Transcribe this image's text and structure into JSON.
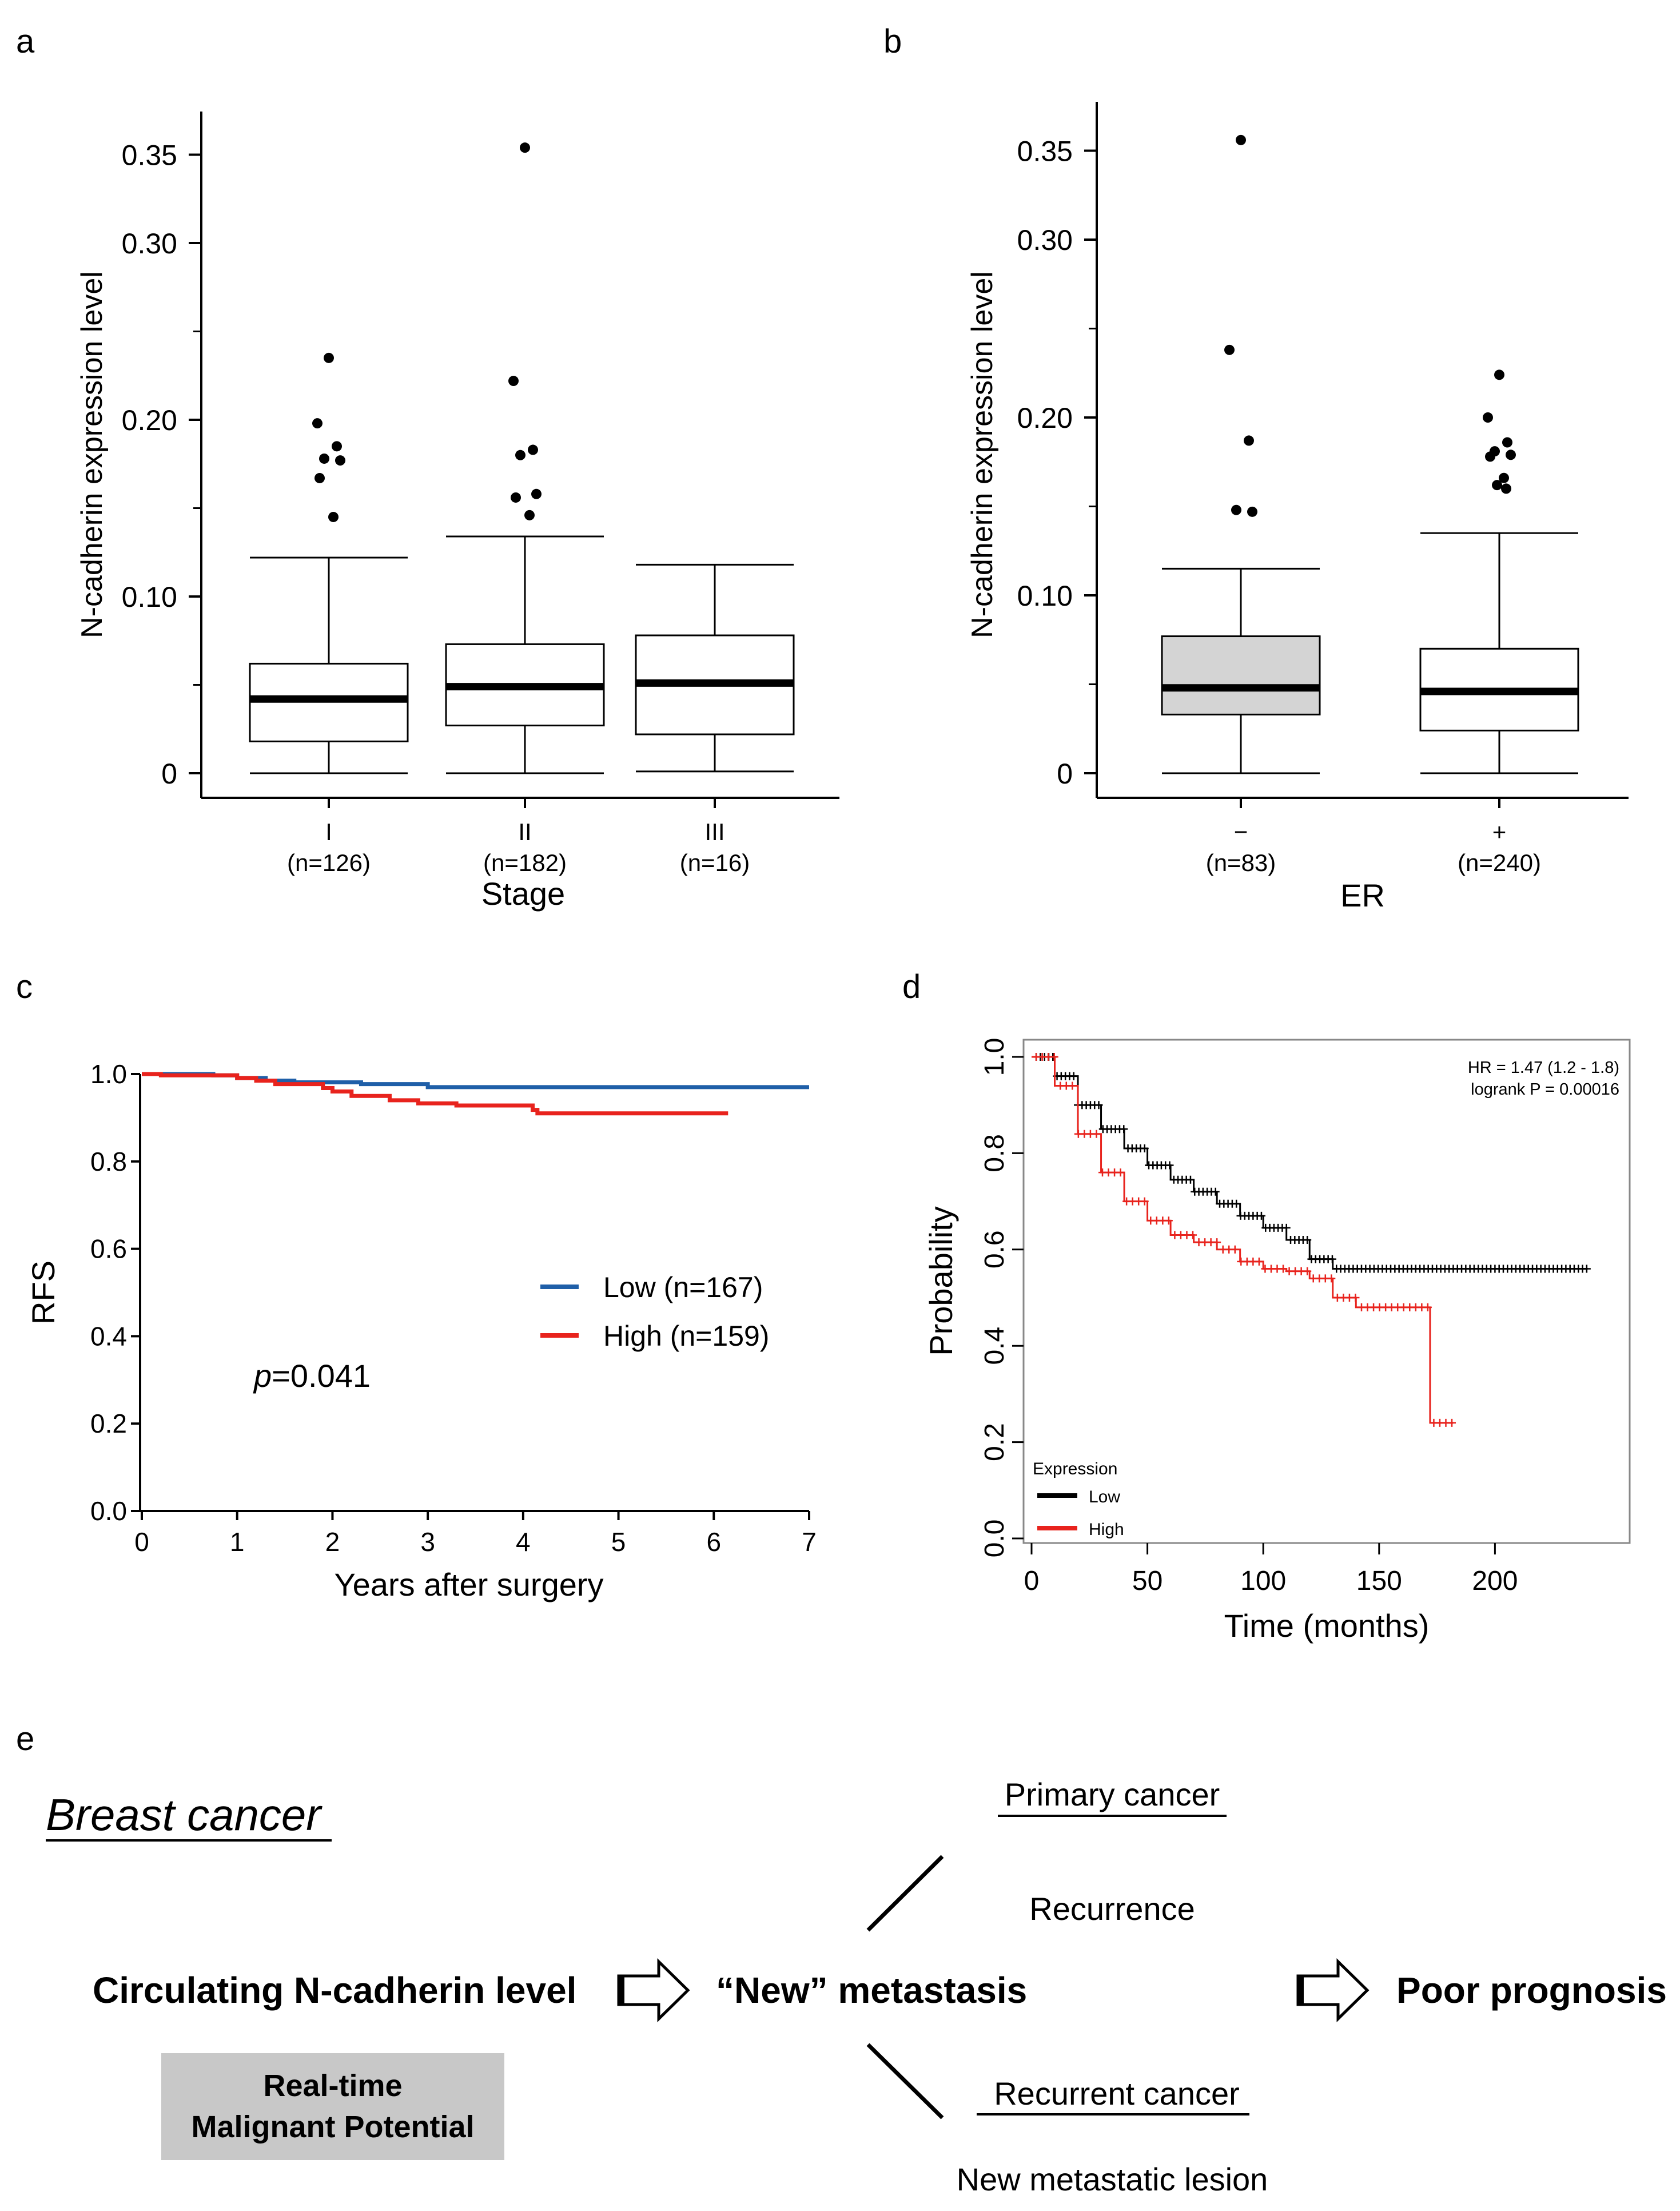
{
  "panel_labels": {
    "a": "a",
    "b": "b",
    "c": "c",
    "d": "d",
    "e": "e"
  },
  "chart_data": [
    {
      "id": "a",
      "type": "box",
      "ylabel": "N-cadherin expression level",
      "xlabel": "Stage",
      "ylim": [
        0,
        0.37
      ],
      "yticks": [
        {
          "v": 0,
          "label": "0"
        },
        {
          "v": 0.1,
          "label": "0.10"
        },
        {
          "v": 0.2,
          "label": "0.20"
        },
        {
          "v": 0.3,
          "label": "0.30"
        },
        {
          "v": 0.35,
          "label": "0.35"
        }
      ],
      "minor_yticks": [
        0.05,
        0.15,
        0.25
      ],
      "groups": [
        {
          "name": "I",
          "n": "(n=126)",
          "min": 0.0,
          "q1": 0.018,
          "median": 0.042,
          "q3": 0.062,
          "max": 0.122,
          "fill": "#ffffff",
          "outliers": [
            0.235,
            0.198,
            0.185,
            0.178,
            0.177,
            0.167,
            0.145
          ]
        },
        {
          "name": "II",
          "n": "(n=182)",
          "min": 0.0,
          "q1": 0.027,
          "median": 0.049,
          "q3": 0.073,
          "max": 0.134,
          "fill": "#ffffff",
          "outliers": [
            0.354,
            0.222,
            0.183,
            0.18,
            0.158,
            0.156,
            0.146
          ]
        },
        {
          "name": "III",
          "n": "(n=16)",
          "min": 0.001,
          "q1": 0.022,
          "median": 0.051,
          "q3": 0.078,
          "max": 0.118,
          "fill": "#ffffff",
          "outliers": []
        }
      ]
    },
    {
      "id": "b",
      "type": "box",
      "ylabel": "N-cadherin expression level",
      "xlabel": "ER",
      "ylim": [
        0,
        0.37
      ],
      "yticks": [
        {
          "v": 0,
          "label": "0"
        },
        {
          "v": 0.1,
          "label": "0.10"
        },
        {
          "v": 0.2,
          "label": "0.20"
        },
        {
          "v": 0.3,
          "label": "0.30"
        },
        {
          "v": 0.35,
          "label": "0.35"
        }
      ],
      "minor_yticks": [
        0.05,
        0.15,
        0.25
      ],
      "groups": [
        {
          "name": "−",
          "n": "(n=83)",
          "min": 0.0,
          "q1": 0.033,
          "median": 0.048,
          "q3": 0.077,
          "max": 0.115,
          "fill": "#d4d4d4",
          "outliers": [
            0.356,
            0.238,
            0.187,
            0.148,
            0.147
          ]
        },
        {
          "name": "+",
          "n": "(n=240)",
          "min": 0.0,
          "q1": 0.024,
          "median": 0.046,
          "q3": 0.07,
          "max": 0.135,
          "fill": "#ffffff",
          "outliers": [
            0.224,
            0.2,
            0.186,
            0.181,
            0.179,
            0.178,
            0.166,
            0.162,
            0.16
          ]
        }
      ]
    },
    {
      "id": "c",
      "type": "line",
      "xlabel": "Years after surgery",
      "ylabel": "RFS",
      "xlim": [
        0,
        7
      ],
      "ylim": [
        0,
        1.0
      ],
      "xticks": [
        "0",
        "1",
        "2",
        "3",
        "4",
        "5",
        "6",
        "7"
      ],
      "yticks": [
        "0.0",
        "0.2",
        "0.4",
        "0.6",
        "0.8",
        "1.0"
      ],
      "annotation": "=0.041",
      "annotation_italic": "p",
      "series": [
        {
          "name": "Low (n=167)",
          "color": "#1f5fa8",
          "steps": [
            [
              0,
              1.0
            ],
            [
              0.75,
              0.997
            ],
            [
              1.0,
              0.991
            ],
            [
              1.3,
              0.985
            ],
            [
              1.6,
              0.981
            ],
            [
              2.3,
              0.977
            ],
            [
              3.0,
              0.97
            ],
            [
              7.0,
              0.97
            ]
          ]
        },
        {
          "name": "High (n=159)",
          "color": "#e8231d",
          "steps": [
            [
              0,
              1.0
            ],
            [
              0.2,
              0.997
            ],
            [
              1.0,
              0.991
            ],
            [
              1.2,
              0.985
            ],
            [
              1.4,
              0.977
            ],
            [
              1.9,
              0.968
            ],
            [
              2.0,
              0.96
            ],
            [
              2.2,
              0.95
            ],
            [
              2.6,
              0.94
            ],
            [
              2.9,
              0.933
            ],
            [
              3.3,
              0.928
            ],
            [
              4.1,
              0.918
            ],
            [
              4.15,
              0.91
            ],
            [
              6.15,
              0.91
            ]
          ]
        }
      ]
    },
    {
      "id": "d",
      "type": "line",
      "xlabel": "Time (months)",
      "ylabel": "Probability",
      "xlim": [
        0,
        250
      ],
      "ylim": [
        0,
        1.0
      ],
      "xticks": [
        "0",
        "50",
        "100",
        "150",
        "200"
      ],
      "yticks": [
        "0.0",
        "0.2",
        "0.4",
        "0.6",
        "0.8",
        "1.0"
      ],
      "stats": [
        "HR = 1.47 (1.2 - 1.8)",
        "logrank P = 0.00016"
      ],
      "legend_title": "Expression",
      "series": [
        {
          "name": "Low",
          "color": "#000000",
          "steps": [
            [
              0,
              1.0
            ],
            [
              10,
              0.96
            ],
            [
              20,
              0.9
            ],
            [
              30,
              0.85
            ],
            [
              40,
              0.81
            ],
            [
              50,
              0.775
            ],
            [
              60,
              0.745
            ],
            [
              70,
              0.72
            ],
            [
              80,
              0.695
            ],
            [
              90,
              0.67
            ],
            [
              100,
              0.645
            ],
            [
              110,
              0.62
            ],
            [
              120,
              0.58
            ],
            [
              130,
              0.56
            ],
            [
              240,
              0.56
            ]
          ]
        },
        {
          "name": "High",
          "color": "#e8231d",
          "steps": [
            [
              0,
              1.0
            ],
            [
              10,
              0.94
            ],
            [
              20,
              0.84
            ],
            [
              30,
              0.76
            ],
            [
              40,
              0.7
            ],
            [
              50,
              0.66
            ],
            [
              60,
              0.63
            ],
            [
              70,
              0.615
            ],
            [
              80,
              0.6
            ],
            [
              90,
              0.575
            ],
            [
              100,
              0.56
            ],
            [
              110,
              0.555
            ],
            [
              120,
              0.54
            ],
            [
              130,
              0.5
            ],
            [
              140,
              0.48
            ],
            [
              170,
              0.48
            ],
            [
              172,
              0.24
            ],
            [
              182,
              0.24
            ]
          ]
        }
      ]
    }
  ],
  "diagram_e": {
    "title": "Breast cancer",
    "left": "Circulating N-cadherin level",
    "box": [
      "Real-time",
      "Malignant Potential"
    ],
    "middle": "“New” metastasis",
    "upper_heading": "Primary cancer",
    "upper_text": "Recurrence",
    "lower_heading": "Recurrent cancer",
    "lower_text": "New metastatic lesion",
    "right": "Poor prognosis",
    "box_color": "#c8c8c8"
  }
}
